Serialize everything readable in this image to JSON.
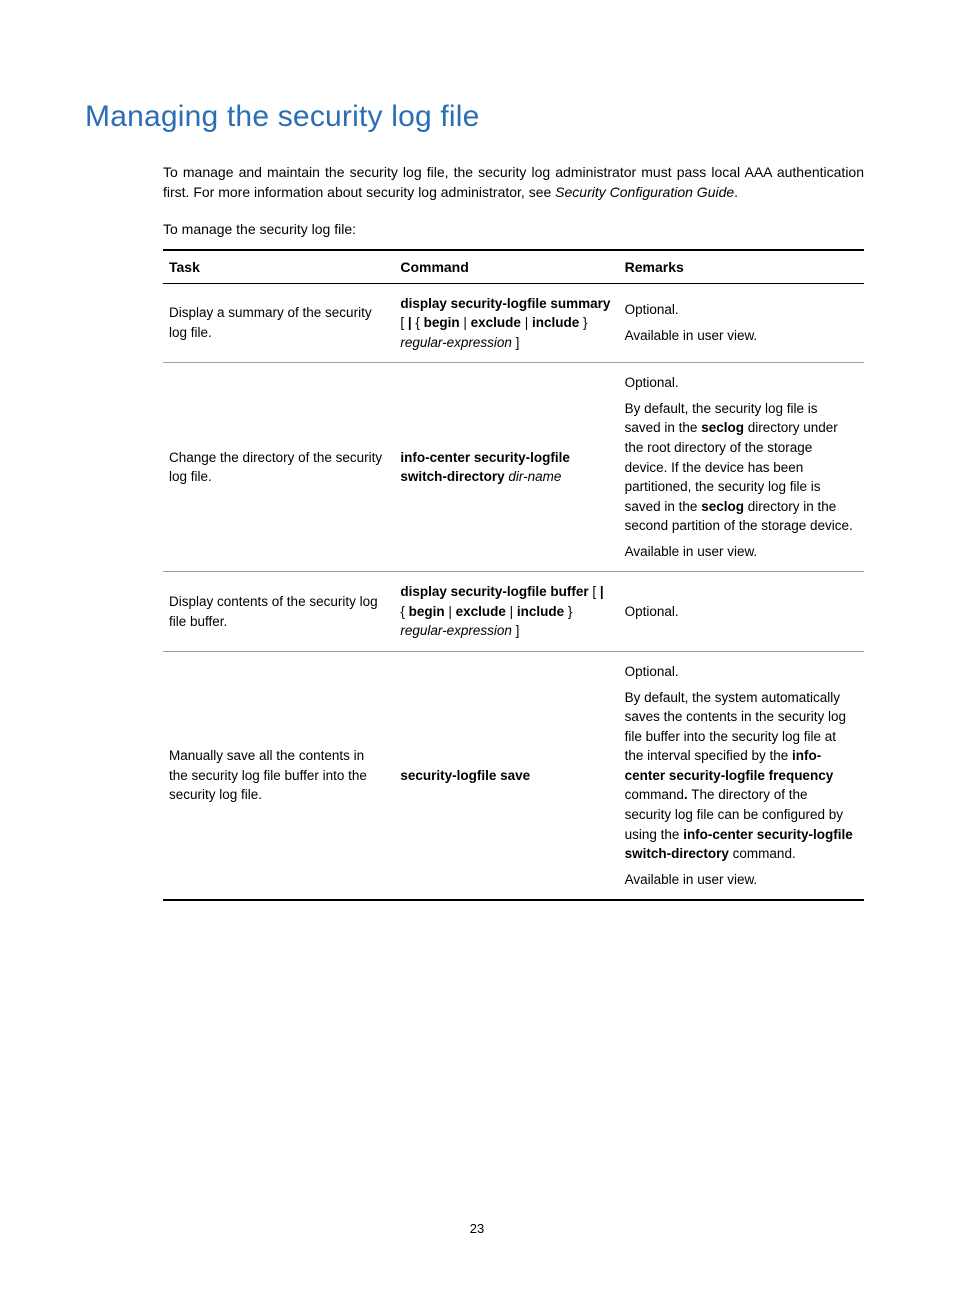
{
  "title": "Managing the security log file",
  "intro_html": "To manage and maintain the security log file, the security log administrator must pass local AAA authentication first. For more information about security log administrator, see <span class=\"italic\">Security Configuration Guide</span>.",
  "subintro": "To manage the security log file:",
  "page_number": "23",
  "table": {
    "headers": {
      "c1": "Task",
      "c2": "Command",
      "c3": "Remarks"
    },
    "rows": [
      {
        "task": "Display a summary of the security log file.",
        "command_html": "<span class=\"b\">display security-logfile summary</span> [ <span class=\"b\">|</span> { <span class=\"b\">begin</span> | <span class=\"b\">exclude</span> | <span class=\"b\">include</span> } <span class=\"italic\">regular-expression</span> ]",
        "remarks_html": "<div class=\"remark-block\">Optional.</div><div class=\"remark-block\">Available in user view.</div>"
      },
      {
        "task": "Change the directory of the security log file.",
        "command_html": "<span class=\"b\">info-center security-logfile switch-directory</span> <span class=\"italic\">dir-name</span>",
        "remarks_html": "<div class=\"remark-block\">Optional.</div><div class=\"remark-block\">By default, the security log file is saved in the <span class=\"b\">seclog</span> directory under the root directory of the storage device. If the device has been partitioned, the security log file is saved in the <span class=\"b\">seclog</span> directory in the second partition of the storage device.</div><div class=\"remark-block\">Available in user view.</div>"
      },
      {
        "task": "Display contents of the security log file buffer.",
        "command_html": "<span class=\"b\">display security-logfile buffer</span> [ <span class=\"b\">|</span> { <span class=\"b\">begin</span> | <span class=\"b\">exclude</span> | <span class=\"b\">include</span> } <span class=\"italic\">regular-expression</span> ]",
        "remarks_html": "Optional."
      },
      {
        "task": "Manually save all the contents in the security log file buffer into the security log file.",
        "command_html": "<span class=\"b\">security-logfile save</span>",
        "remarks_html": "<div class=\"remark-block\">Optional.</div><div class=\"remark-block\">By default, the system automatically saves the contents in the security log file buffer into the security log file at the interval specified by the <span class=\"b\">info-center security-logfile frequency</span> command<span class=\"b\">.</span> The directory of the security log file can be configured by using the <span class=\"b\">info-center security-logfile switch-directory</span> command.</div><div class=\"remark-block\">Available in user view.</div>"
      }
    ]
  }
}
